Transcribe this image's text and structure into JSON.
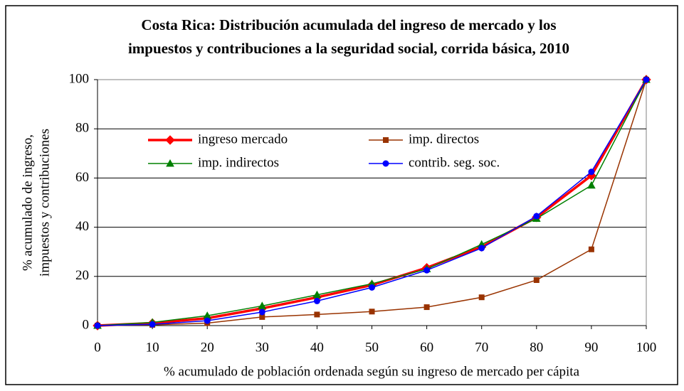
{
  "chart_data": {
    "type": "line",
    "title": [
      "Costa Rica: Distribución acumulada del ingreso de mercado y los",
      "impuestos y contribuciones a la seguridad social, corrida básica, 2010"
    ],
    "xlabel": "% acumulado de población ordenada según su ingreso de mercado per cápita",
    "ylabel": [
      "% acumulado de ingreso,",
      "impuestos y contribuciones"
    ],
    "x": [
      0,
      10,
      20,
      30,
      40,
      50,
      60,
      70,
      80,
      90,
      100
    ],
    "xlim": [
      0,
      100
    ],
    "xticks": [
      0,
      10,
      20,
      30,
      40,
      50,
      60,
      70,
      80,
      90,
      100
    ],
    "ylim": [
      0,
      100
    ],
    "yticks": [
      0,
      20,
      40,
      60,
      80,
      100
    ],
    "grid": true,
    "series": [
      {
        "name": "ingreso mercado",
        "color": "#ff0000",
        "marker": "diamond",
        "linewidth": 3.5,
        "values": [
          0,
          1,
          3,
          7,
          11.5,
          16.5,
          23.5,
          32,
          44,
          61,
          100
        ]
      },
      {
        "name": "imp. directos",
        "color": "#993300",
        "marker": "square",
        "linewidth": 1.5,
        "values": [
          0,
          0.3,
          1,
          3.5,
          4.5,
          5.7,
          7.5,
          11.5,
          18.5,
          31,
          100
        ]
      },
      {
        "name": "imp. indirectos",
        "color": "#008000",
        "marker": "triangle",
        "linewidth": 1.5,
        "values": [
          0,
          1.3,
          4,
          8,
          12.5,
          17,
          23,
          33,
          43.5,
          57,
          100
        ]
      },
      {
        "name": "contrib. seg. soc.",
        "color": "#0000ff",
        "marker": "circle",
        "linewidth": 1.5,
        "values": [
          0,
          0.5,
          2,
          5.5,
          10,
          15.5,
          22.5,
          31.5,
          44.5,
          62.5,
          100
        ]
      }
    ]
  }
}
